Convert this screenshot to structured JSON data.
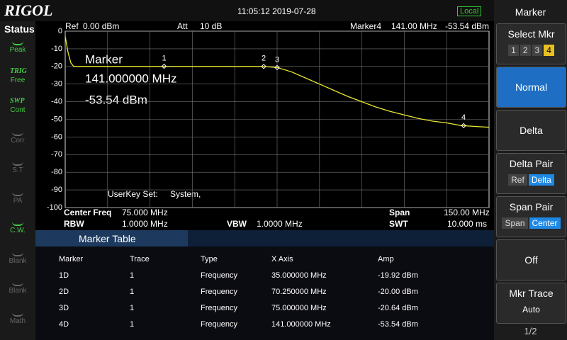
{
  "header": {
    "brand": "RIGOL",
    "datetime": "11:05:12 2019-07-28",
    "status": "Local"
  },
  "status_panel": {
    "title": "Status",
    "items": [
      {
        "label": "Peak",
        "active": true
      },
      {
        "title": "TRIG",
        "label": "Free",
        "active": true
      },
      {
        "title": "SWP",
        "label": "Cont",
        "active": true
      },
      {
        "label": "Corr",
        "active": false
      },
      {
        "label": "S.T",
        "active": false
      },
      {
        "label": "PA",
        "active": false
      },
      {
        "label": "C.W.",
        "active": true
      },
      {
        "label": "Blank",
        "active": false
      },
      {
        "label": "Blank",
        "active": false
      },
      {
        "label": "Math",
        "active": false
      }
    ]
  },
  "chart_data": {
    "type": "line",
    "ref_label": "Ref",
    "ref_value": "0.00 dBm",
    "att_label": "Att",
    "att_value": "10 dB",
    "marker_label": "Marker4",
    "marker_freq": "141.00 MHz",
    "marker_amp": "-53.54 dBm",
    "annotation": {
      "title": "Marker",
      "freq": "141.000000 MHz",
      "amp": "-53.54 dBm"
    },
    "userkey": "UserKey Set:",
    "userkey_value": "System,",
    "x": [
      0,
      1,
      2,
      3,
      5,
      10,
      20,
      30,
      40,
      50,
      60,
      70,
      75,
      80,
      85,
      90,
      95,
      100,
      105,
      110,
      115,
      120,
      125,
      130,
      135,
      140,
      145,
      150
    ],
    "values": [
      -3,
      -12,
      -18,
      -20,
      -20,
      -20,
      -20,
      -20,
      -20,
      -20,
      -20,
      -20,
      -20.6,
      -23,
      -26.5,
      -30,
      -33.5,
      -37,
      -40,
      -43,
      -45.5,
      -47.5,
      -49.5,
      -51,
      -52,
      -53.5,
      -54,
      -54.5
    ],
    "color": "#e8e830",
    "xlim": [
      0,
      150
    ],
    "ylim": [
      -100,
      0
    ],
    "yticks": [
      0,
      -10,
      -20,
      -30,
      -40,
      -50,
      -60,
      -70,
      -80,
      -90,
      -100
    ],
    "grid": true,
    "markers": [
      {
        "label": "1",
        "x": 35,
        "y": -19.92
      },
      {
        "label": "2",
        "x": 70.25,
        "y": -20
      },
      {
        "label": "3",
        "x": 75,
        "y": -20.64
      },
      {
        "label": "4",
        "x": 141,
        "y": -53.54
      }
    ]
  },
  "settings": {
    "center_label": "Center Freq",
    "center_value": "75.000 MHz",
    "span_label": "Span",
    "span_value": "150.00 MHz",
    "rbw_label": "RBW",
    "rbw_value": "1.0000 MHz",
    "vbw_label": "VBW",
    "vbw_value": "1.0000 MHz",
    "swt_label": "SWT",
    "swt_value": "10.000 ms"
  },
  "marker_table": {
    "title": "Marker Table",
    "columns": [
      "Marker",
      "Trace",
      "Type",
      "X Axis",
      "Amp"
    ],
    "rows": [
      [
        "1D",
        "1",
        "Frequency",
        "35.000000 MHz",
        "-19.92 dBm"
      ],
      [
        "2D",
        "1",
        "Frequency",
        "70.250000 MHz",
        "-20.00 dBm"
      ],
      [
        "3D",
        "1",
        "Frequency",
        "75.000000 MHz",
        "-20.64 dBm"
      ],
      [
        "4D",
        "1",
        "Frequency",
        "141.000000 MHz",
        "-53.54 dBm"
      ]
    ]
  },
  "menu": {
    "title": "Marker",
    "select": "Select Mkr",
    "select_options": [
      "1",
      "2",
      "3",
      "4"
    ],
    "normal": "Normal",
    "delta": "Delta",
    "delta_pair": "Delta Pair",
    "delta_pair_options": [
      "Ref",
      "Delta"
    ],
    "span_pair": "Span Pair",
    "span_pair_options": [
      "Span",
      "Center"
    ],
    "off": "Off",
    "mkr_trace": "Mkr Trace",
    "mkr_trace_value": "Auto",
    "page": "1/2"
  }
}
